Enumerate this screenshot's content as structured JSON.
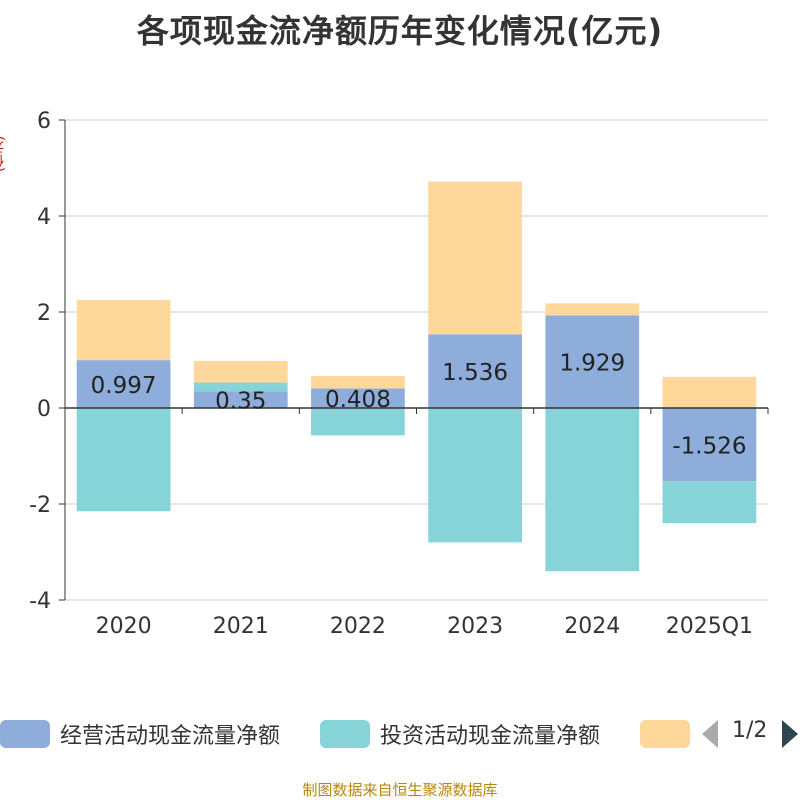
{
  "title": "各项现金流净额历年变化情况(亿元)",
  "y_unit": "(亿元)",
  "source": "制图数据来自恒生聚源数据库",
  "legend": {
    "items": [
      {
        "label": "经营活动现金流量净额",
        "color": "#8eaddb"
      },
      {
        "label": "投资活动现金流量净额",
        "color": "#86d4d8"
      },
      {
        "label": "",
        "color": "#fdd89a"
      }
    ],
    "page": "1/2"
  },
  "chart_data": {
    "type": "bar",
    "stacked": true,
    "categories": [
      "2020",
      "2021",
      "2022",
      "2023",
      "2024",
      "2025Q1"
    ],
    "ylim": [
      -4,
      6
    ],
    "yticks": [
      -4,
      -2,
      0,
      2,
      4,
      6
    ],
    "grid": true,
    "legend_position": "bottom",
    "series": [
      {
        "name": "经营活动现金流量净额",
        "color": "#8eaddb",
        "values": [
          0.997,
          0.35,
          0.408,
          1.536,
          1.929,
          -1.526
        ],
        "labels": [
          "0.997",
          "0.35",
          "0.408",
          "1.536",
          "1.929",
          "-1.526"
        ]
      },
      {
        "name": "投资活动现金流量净额",
        "color": "#86d4d8",
        "values": [
          -2.15,
          0.18,
          -0.57,
          -2.8,
          -3.4,
          -0.87
        ]
      },
      {
        "color": "#fdd89a",
        "values": [
          1.25,
          0.45,
          0.26,
          3.18,
          0.25,
          0.65
        ]
      }
    ]
  }
}
